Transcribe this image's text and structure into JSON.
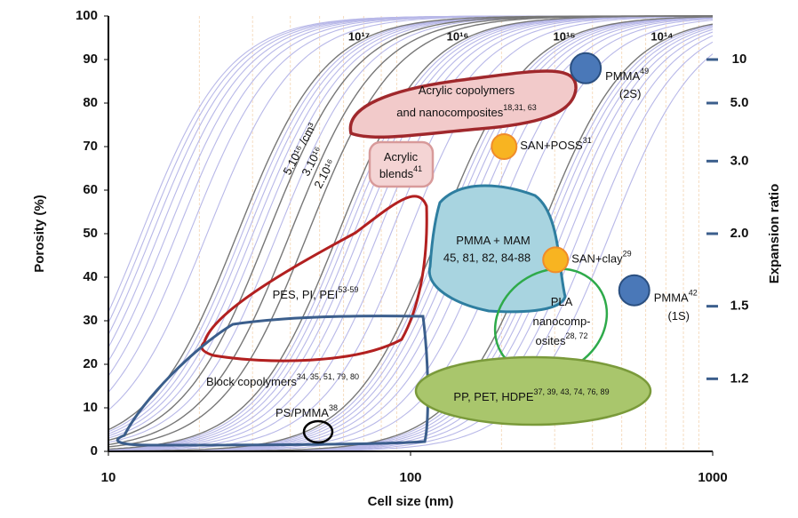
{
  "chart_data": {
    "type": "scatter",
    "x_label": "Cell size (nm)",
    "y_label": "Porosity (%)",
    "y2_label": "Expansion ratio",
    "x_log": true,
    "minor_grid": true,
    "xlim": [
      10,
      1000
    ],
    "xticks": [
      10,
      100,
      1000
    ],
    "ylim": [
      0,
      100
    ],
    "yticks": [
      0,
      10,
      20,
      30,
      40,
      50,
      60,
      70,
      80,
      90,
      100
    ],
    "y2ticks": [
      1.2,
      1.5,
      {
        "value": 2,
        "label": "2.0"
      },
      {
        "value": 3,
        "label": "3.0"
      },
      {
        "value": 5,
        "label": "5.0"
      },
      10
    ],
    "density_curves": {
      "main_color": "#777777",
      "minor_color": "#b8b8e8",
      "main": [
        1e+17,
        5e+16,
        3e+16,
        2e+16,
        1e+16,
        1000000000000000.0,
        100000000000000.0
      ],
      "minor": [
        9e+17,
        8e+17,
        7e+17,
        6e+17,
        5e+17,
        4e+17,
        3e+17,
        2e+17,
        9e+16,
        8e+16,
        7e+16,
        6e+16,
        4e+16,
        9000000000000000.0,
        8000000000000000.0,
        7000000000000000.0,
        6000000000000000.0,
        5000000000000000.0,
        4000000000000000.0,
        3000000000000000.0,
        2000000000000000.0,
        900000000000000.0,
        800000000000000.0,
        700000000000000.0,
        600000000000000.0,
        500000000000000.0,
        400000000000000.0,
        300000000000000.0,
        200000000000000.0,
        90000000000000.0,
        80000000000000.0,
        70000000000000.0,
        60000000000000.0,
        50000000000000.0,
        40000000000000.0,
        30000000000000.0,
        20000000000000.0
      ]
    },
    "curve_labels": [
      "10¹⁷",
      "10¹⁶",
      "10¹⁵",
      "10¹⁴",
      "5.10¹⁶ /cm³",
      "3.10¹⁶",
      "2.10¹⁶"
    ],
    "regions": [
      {
        "lines": [
          "Acrylic copolymers",
          "and nanocomposites"
        ],
        "ref": "18,31, 63"
      },
      {
        "lines": [
          "Acrylic",
          "blends"
        ],
        "ref": "41"
      },
      {
        "lines": [
          "PES, PI, PEI"
        ],
        "ref": "53-59"
      },
      {
        "lines": [
          "Block copolymers"
        ],
        "ref": "34, 35, 51, 79, 80"
      },
      {
        "lines": [
          "PS/PMMA"
        ],
        "ref": "38"
      },
      {
        "lines": [
          "PMMA + MAM"
        ],
        "ref": "45, 81, 82, 84-88"
      },
      {
        "lines": [
          "PLA",
          "nanocomp-",
          "osites"
        ],
        "ref": "28, 72"
      },
      {
        "lines": [
          "PP, PET, HDPE"
        ],
        "ref": "37, 39, 43, 74, 76, 89"
      }
    ],
    "points": [
      {
        "name": "PMMA",
        "ref": "49",
        "note": "(2S)",
        "x": 380,
        "y": 88,
        "color": "#4a78b8"
      },
      {
        "name": "SAN+POSS",
        "ref": "31",
        "x": 204,
        "y": 70,
        "color": "#f8b421"
      },
      {
        "name": "SAN+clay",
        "ref": "29",
        "x": 302,
        "y": 44,
        "color": "#f8b421"
      },
      {
        "name": "PMMA",
        "ref": "42",
        "note": "(1S)",
        "x": 550,
        "y": 37,
        "color": "#4a78b8"
      }
    ]
  }
}
